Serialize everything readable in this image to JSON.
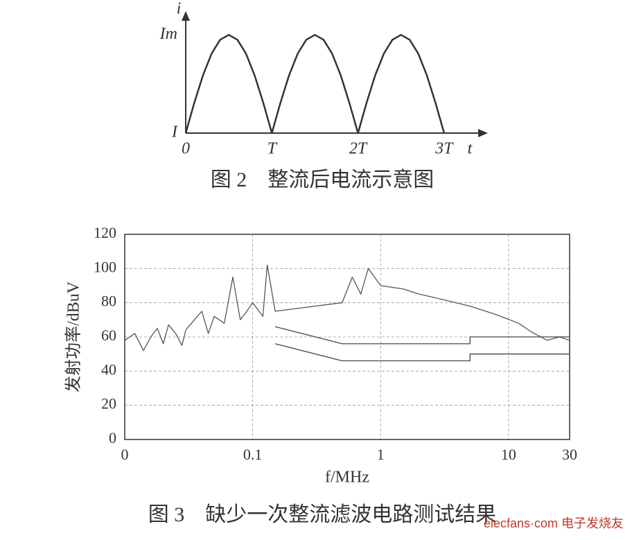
{
  "chart_data": [
    {
      "type": "line",
      "caption": "图 2　整流后电流示意图",
      "ylabel": "i",
      "xlabel": "t",
      "xlim": [
        0,
        3.5
      ],
      "ylim": [
        0,
        1.2
      ],
      "xticks": [
        0,
        {
          "value": 1,
          "label": "T"
        },
        {
          "value": 2,
          "label": "2T"
        },
        {
          "value": 3,
          "label": "3T"
        }
      ],
      "yticks": [
        {
          "value": 0,
          "label": "I"
        },
        {
          "value": 1,
          "label": "Im"
        }
      ],
      "grid": false,
      "log_x": false,
      "series": [
        {
          "color": "#333333",
          "x": [
            0,
            0.1,
            0.2,
            0.3,
            0.4,
            0.5,
            0.6,
            0.7,
            0.8,
            0.9,
            1,
            1.1,
            1.2,
            1.3,
            1.4,
            1.5,
            1.6,
            1.7,
            1.8,
            1.9,
            2,
            2.1,
            2.2,
            2.3,
            2.4,
            2.5,
            2.6,
            2.7,
            2.8,
            2.9,
            3
          ],
          "values": [
            0,
            0.309,
            0.588,
            0.809,
            0.951,
            1,
            0.951,
            0.809,
            0.588,
            0.309,
            0,
            0.309,
            0.588,
            0.809,
            0.951,
            1,
            0.951,
            0.809,
            0.588,
            0.309,
            0,
            0.309,
            0.588,
            0.809,
            0.951,
            1,
            0.951,
            0.809,
            0.588,
            0.309,
            0
          ]
        }
      ]
    },
    {
      "type": "line",
      "caption": "图 3　缺少一次整流滤波电路测试结果",
      "ylabel": "发射功率/dBuV",
      "xlabel": "f/MHz",
      "xlim": [
        0.01,
        30
      ],
      "ylim": [
        0,
        120
      ],
      "xticks": [
        {
          "value": 0.01,
          "label": "0"
        },
        0.1,
        1,
        10,
        30
      ],
      "yticks": [
        0,
        20,
        40,
        60,
        80,
        100,
        120
      ],
      "grid": true,
      "log_x": true,
      "series": [
        {
          "color": "#555555",
          "x": [
            0.01,
            0.012,
            0.014,
            0.016,
            0.018,
            0.02,
            0.022,
            0.025,
            0.028,
            0.03,
            0.035,
            0.04,
            0.045,
            0.05,
            0.06,
            0.07,
            0.08,
            0.09,
            0.1,
            0.12,
            0.13,
            0.15,
            0.5,
            0.6,
            0.7,
            0.8,
            1,
            1.5,
            2,
            3,
            5,
            8,
            12,
            15,
            20,
            25,
            30
          ],
          "values": [
            58,
            62,
            52,
            60,
            65,
            56,
            67,
            62,
            55,
            64,
            70,
            75,
            62,
            72,
            68,
            95,
            70,
            75,
            80,
            72,
            102,
            75,
            80,
            95,
            85,
            100,
            90,
            88,
            85,
            82,
            78,
            73,
            68,
            63,
            58,
            60,
            58
          ]
        },
        {
          "color": "#444444",
          "x": [
            0.15,
            0.5,
            5,
            5,
            30
          ],
          "values": [
            66,
            56,
            56,
            60,
            60
          ]
        },
        {
          "color": "#444444",
          "x": [
            0.15,
            0.5,
            5,
            5,
            30
          ],
          "values": [
            56,
            46,
            46,
            50,
            50
          ]
        }
      ]
    }
  ],
  "watermark": "elecfans·com 电子发烧友"
}
